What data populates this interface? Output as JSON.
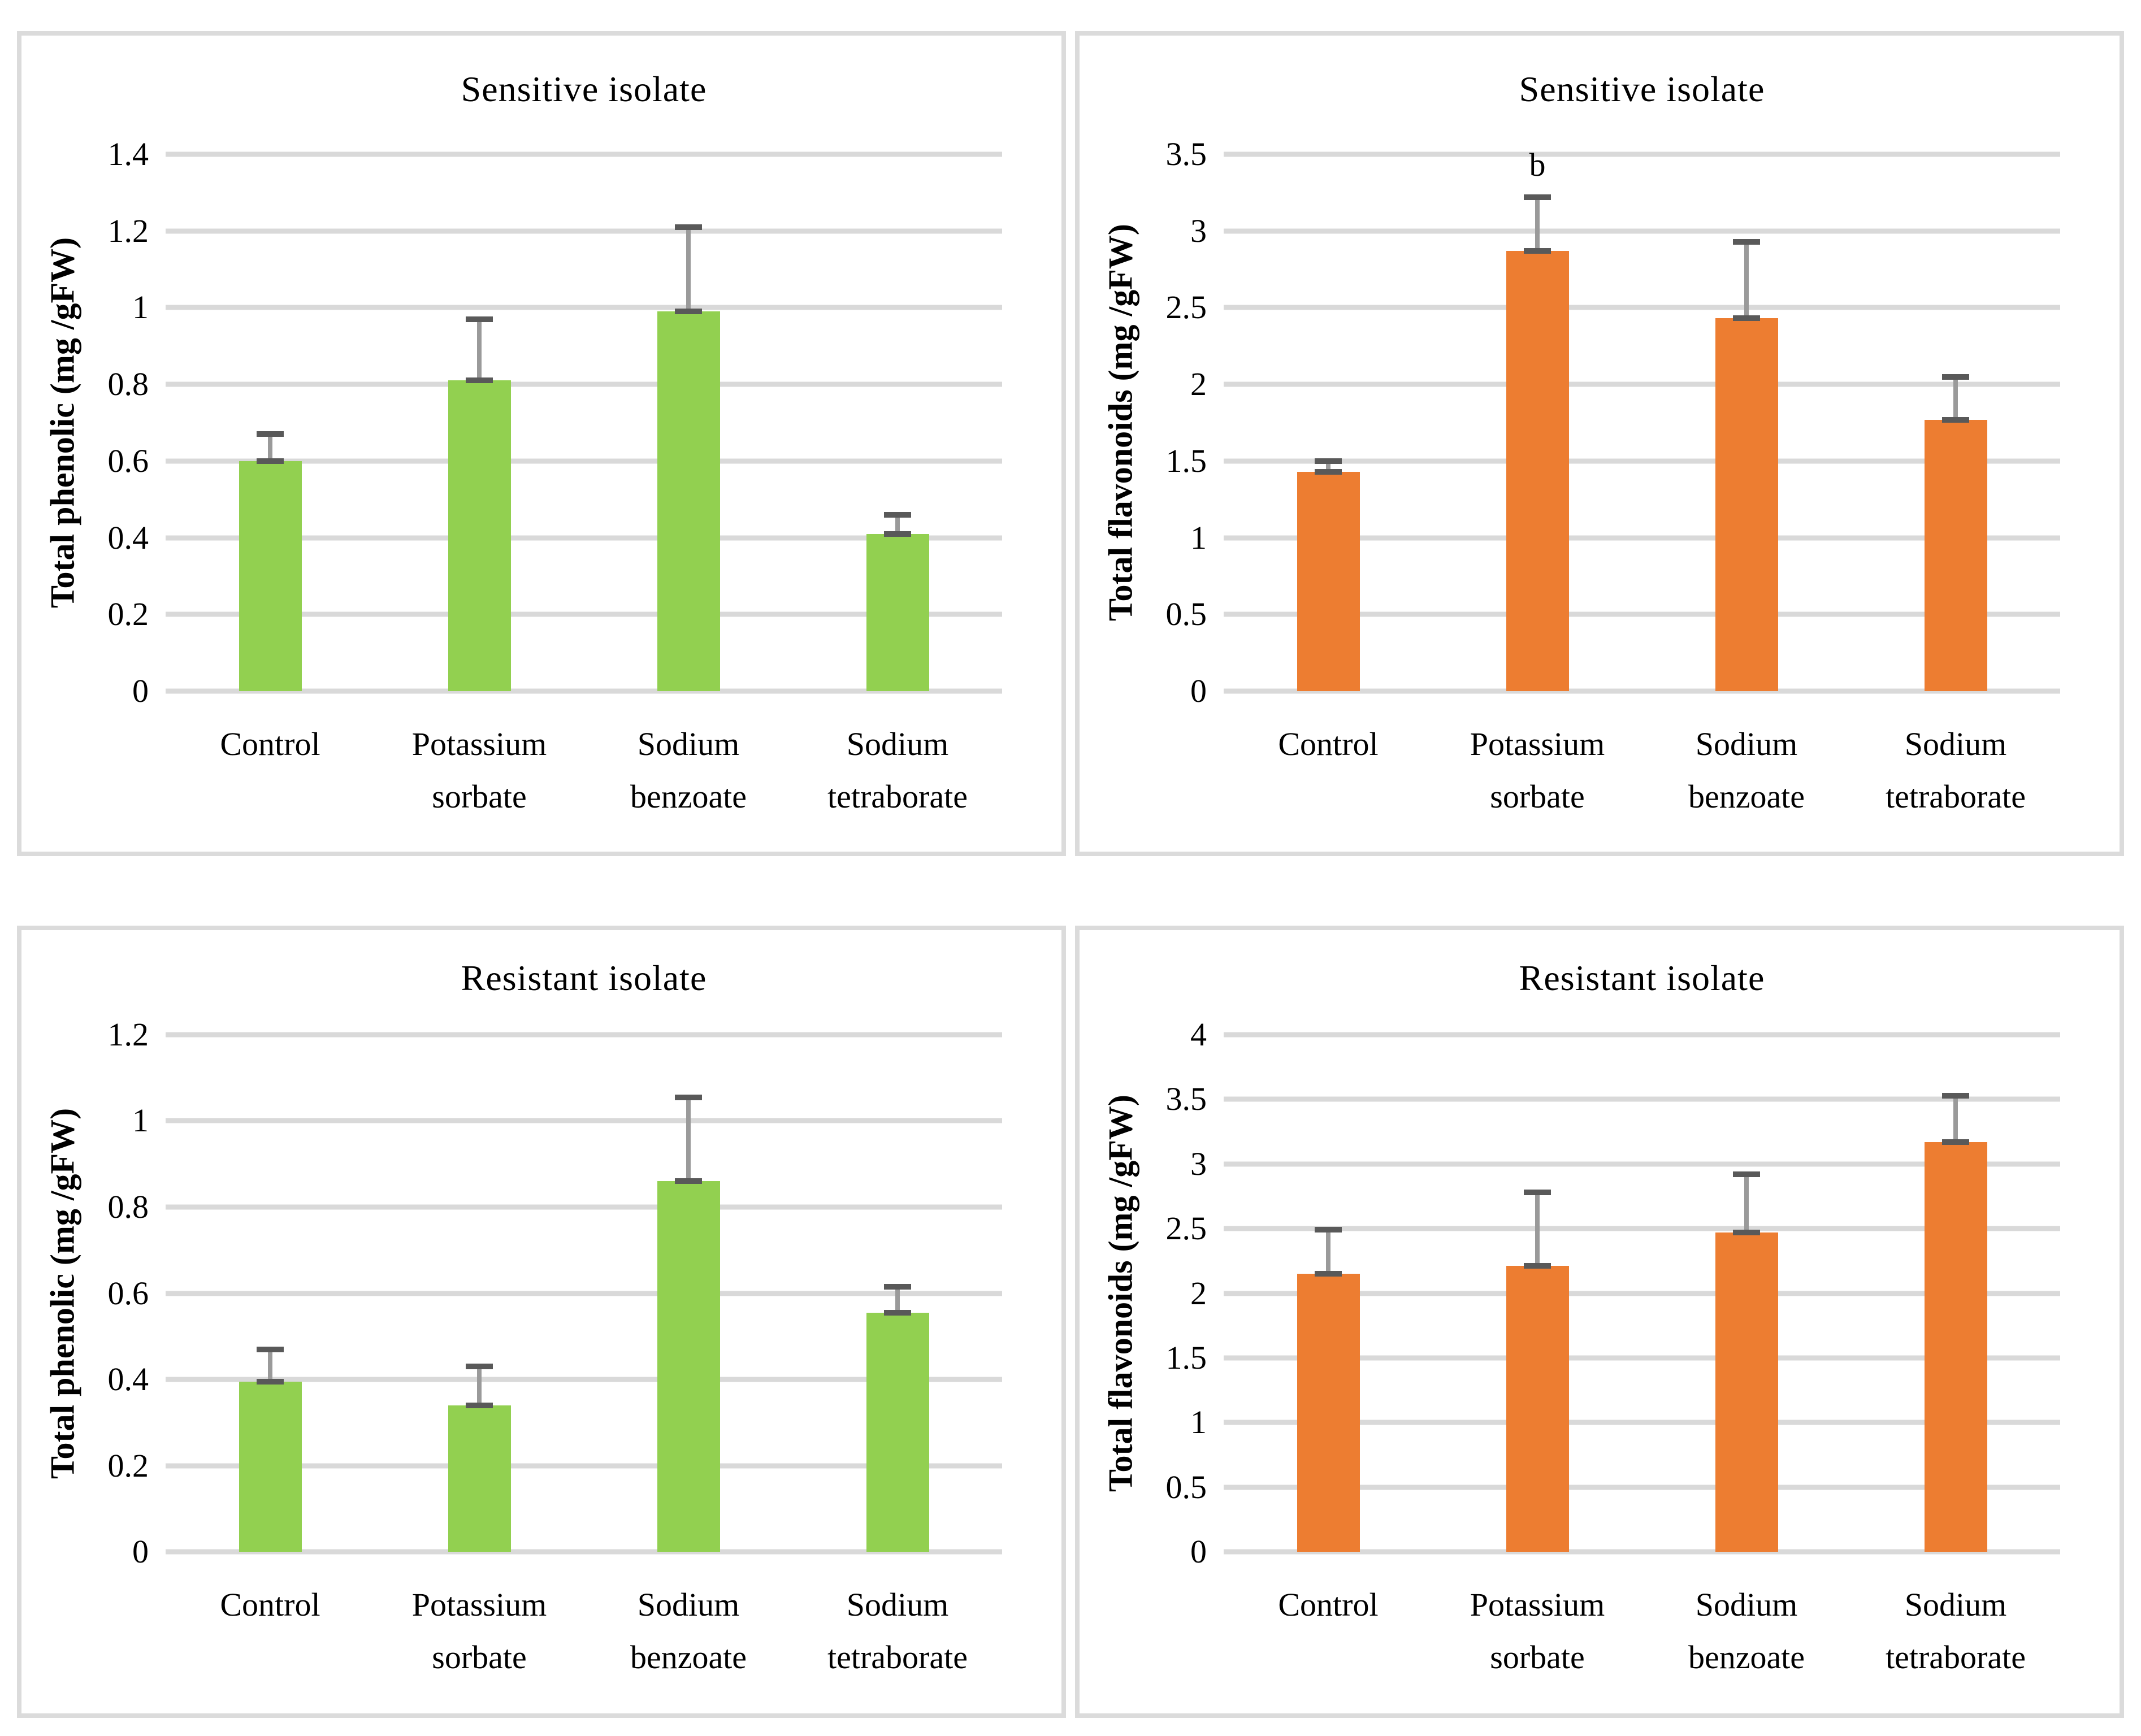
{
  "figure": {
    "background": "#FFFFFF",
    "panel_border_color": "#DBDBDB"
  },
  "colors": {
    "green_bar": "#92D050",
    "orange_bar": "#ED7D31",
    "error_line": "#9A9A9A",
    "error_cap": "#595959",
    "gridline": "#D9D9D9",
    "text": "#000000"
  },
  "chart_data": [
    {
      "type": "bar",
      "title": "Sensitive isolate",
      "ylabel": "Total phenolic (mg /gFW)",
      "xlabel": "",
      "categories": [
        "Control",
        "Potassium sorbate",
        "Sodium benzoate",
        "Sodium tetraborate"
      ],
      "values": [
        0.6,
        0.81,
        0.99,
        0.41
      ],
      "errors": [
        0.07,
        0.16,
        0.22,
        0.05
      ],
      "bar_color": "#92D050",
      "ylim": [
        0,
        1.4
      ],
      "ticks": [
        "0",
        "0.2",
        "0.4",
        "0.6",
        "0.8",
        "1",
        "1.2",
        "1.4"
      ],
      "grid": true,
      "legend": "none",
      "annotation": null
    },
    {
      "type": "bar",
      "title": "Sensitive isolate",
      "ylabel": "Total flavonoids (mg /gFW)",
      "xlabel": "",
      "categories": [
        "Control",
        "Potassium sorbate",
        "Sodium benzoate",
        "Sodium tetraborate"
      ],
      "values": [
        1.43,
        2.87,
        2.43,
        1.77
      ],
      "errors": [
        0.07,
        0.35,
        0.5,
        0.28
      ],
      "bar_color": "#ED7D31",
      "ylim": [
        0,
        3.5
      ],
      "ticks": [
        "0",
        "0.5",
        "1",
        "1.5",
        "2",
        "2.5",
        "3",
        "3.5"
      ],
      "grid": true,
      "legend": "none",
      "annotation": {
        "category_index": 1,
        "text": "b"
      }
    },
    {
      "type": "bar",
      "title": "Resistant isolate",
      "ylabel": "Total phenolic (mg /gFW)",
      "xlabel": "",
      "categories": [
        "Control",
        "Potassium sorbate",
        "Sodium benzoate",
        "Sodium tetraborate"
      ],
      "values": [
        0.395,
        0.34,
        0.86,
        0.555
      ],
      "errors": [
        0.075,
        0.09,
        0.195,
        0.06
      ],
      "bar_color": "#92D050",
      "ylim": [
        0,
        1.2
      ],
      "ticks": [
        "0",
        "0.2",
        "0.4",
        "0.6",
        "0.8",
        "1",
        "1.2"
      ],
      "grid": true,
      "legend": "none",
      "annotation": null
    },
    {
      "type": "bar",
      "title": "Resistant isolate",
      "ylabel": "Total flavonoids (mg /gFW)",
      "xlabel": "",
      "categories": [
        "Control",
        "Potassium sorbate",
        "Sodium benzoate",
        "Sodium tetraborate"
      ],
      "values": [
        2.15,
        2.21,
        2.47,
        3.17
      ],
      "errors": [
        0.34,
        0.57,
        0.45,
        0.36
      ],
      "bar_color": "#ED7D31",
      "ylim": [
        0,
        4
      ],
      "ticks": [
        "0",
        "0.5",
        "1",
        "1.5",
        "2",
        "2.5",
        "3",
        "3.5",
        "4"
      ],
      "grid": true,
      "legend": "none",
      "annotation": null
    }
  ]
}
